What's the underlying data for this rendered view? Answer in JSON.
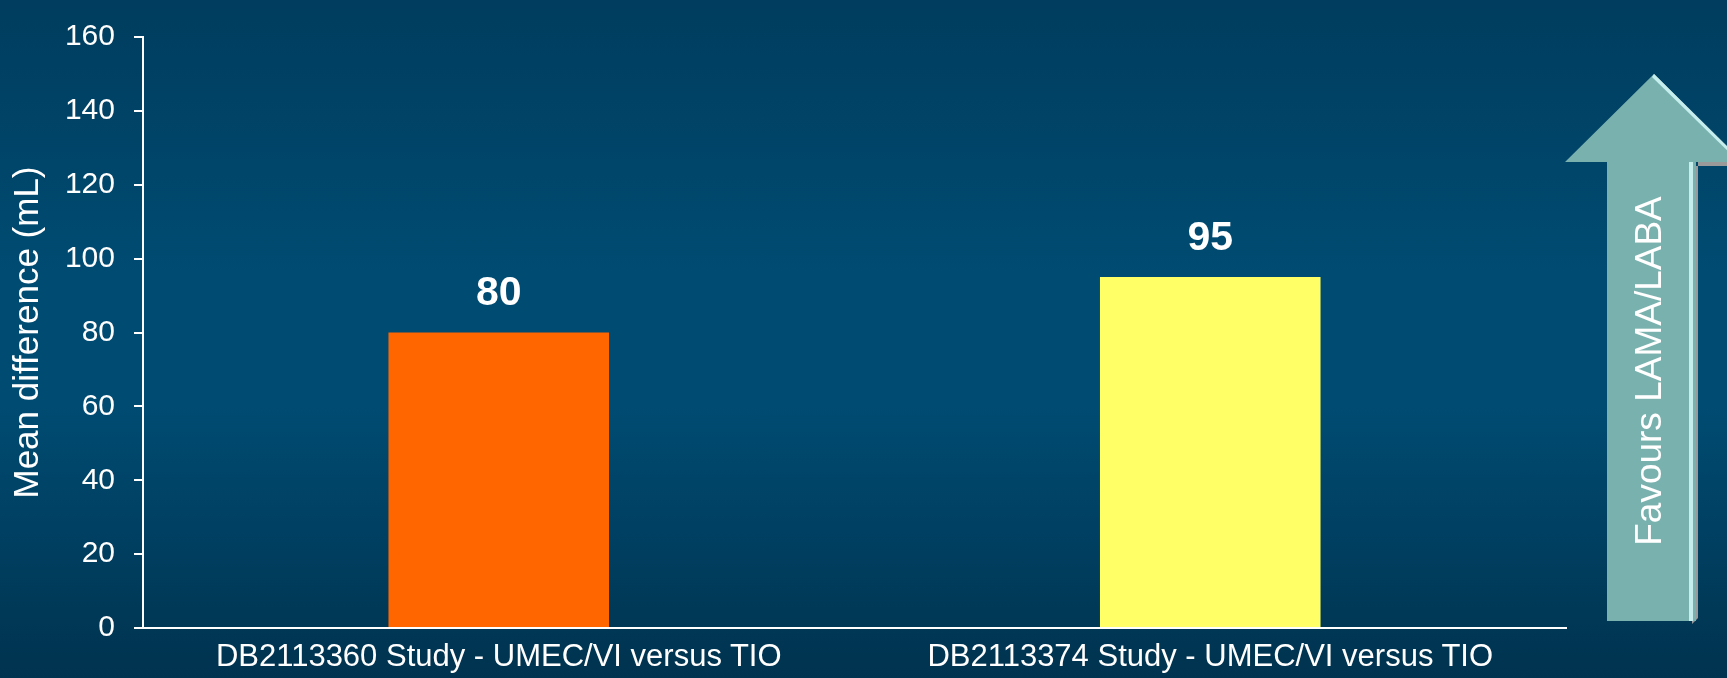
{
  "chart_data": {
    "type": "bar",
    "categories": [
      "DB2113360 Study - UMEC/VI versus TIO",
      "DB2113374 Study - UMEC/VI versus TIO"
    ],
    "values": [
      80,
      95
    ],
    "colors": [
      "#ff6600",
      "#ffff66"
    ],
    "ylabel": "Mean difference (mL)",
    "ylim": [
      0,
      160
    ],
    "yticks": [
      0,
      20,
      40,
      60,
      80,
      100,
      120,
      140,
      160
    ],
    "data_labels": true,
    "annotations": [
      "Favours LAMA/LABA"
    ]
  }
}
